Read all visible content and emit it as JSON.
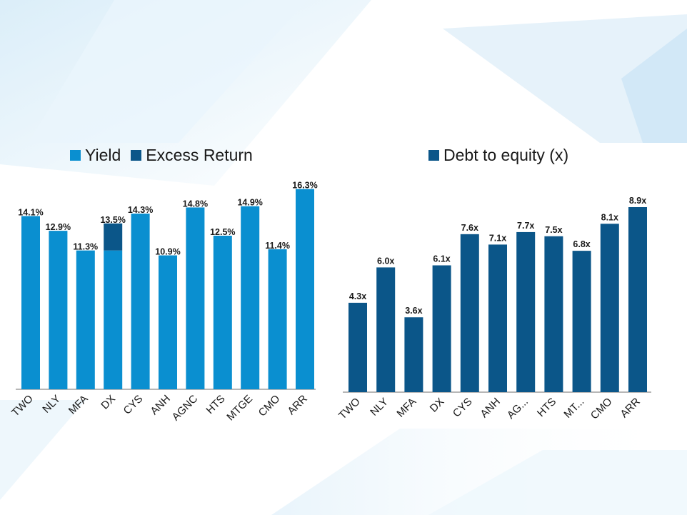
{
  "colors": {
    "yield": "#0a8fd0",
    "excess": "#0b5689",
    "debt": "#0b5689",
    "text": "#1a1a1a",
    "axis": "#6f6f6f"
  },
  "chart_data": [
    {
      "type": "bar",
      "stacked": true,
      "categories": [
        "TWO",
        "NLY",
        "MFA",
        "DX",
        "CYS",
        "ANH",
        "AGNC",
        "HTS",
        "MTGE",
        "CMO",
        "ARR"
      ],
      "series": [
        {
          "name": "Yield",
          "values": [
            14.1,
            12.9,
            11.3,
            11.3,
            14.3,
            10.9,
            14.8,
            12.5,
            14.9,
            11.4,
            16.3
          ]
        },
        {
          "name": "Excess Return",
          "values": [
            0,
            0,
            0,
            2.2,
            0,
            0,
            0,
            0,
            0,
            0,
            0
          ]
        }
      ],
      "labels": [
        "14.1%",
        "12.9%",
        "11.3%",
        "13.5%",
        "14.3%",
        "10.9%",
        "14.8%",
        "12.5%",
        "14.9%",
        "11.4%",
        "16.3%"
      ],
      "legend": "top-left",
      "grid": false
    },
    {
      "type": "bar",
      "categories": [
        "TWO",
        "NLY",
        "MFA",
        "DX",
        "CYS",
        "ANH",
        "AG...",
        "HTS",
        "MT...",
        "CMO",
        "ARR"
      ],
      "series": [
        {
          "name": "Debt to equity (x)",
          "values": [
            4.3,
            6.0,
            3.6,
            6.1,
            7.6,
            7.1,
            7.7,
            7.5,
            6.8,
            8.1,
            8.9
          ]
        }
      ],
      "labels": [
        "4.3x",
        "6.0x",
        "3.6x",
        "6.1x",
        "7.6x",
        "7.1x",
        "7.7x",
        "7.5x",
        "6.8x",
        "8.1x",
        "8.9x"
      ],
      "legend": "top-left",
      "grid": false
    }
  ]
}
